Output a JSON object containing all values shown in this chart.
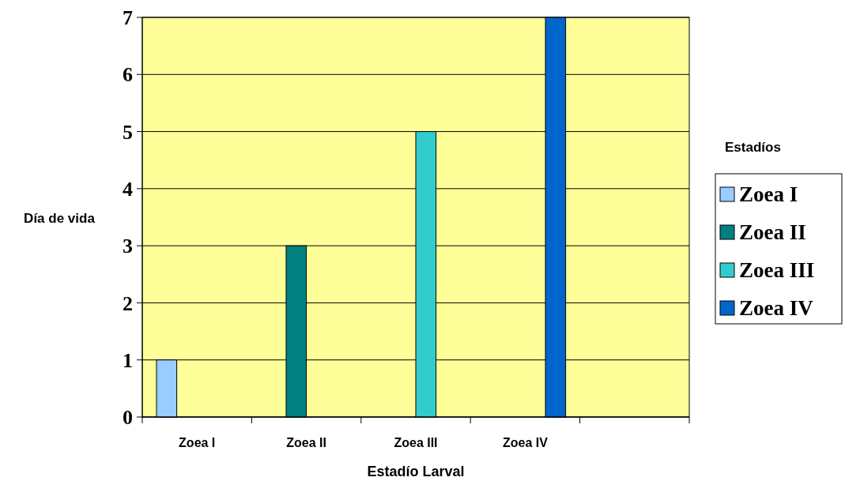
{
  "chart_data": {
    "type": "bar",
    "xlabel": "Estadío Larval",
    "ylabel": "Día de vida",
    "legend_title": "Estadíos",
    "categories": [
      "Zoea I",
      "Zoea II",
      "Zoea III",
      "Zoea IV",
      null
    ],
    "series": [
      {
        "name": "Zoea I",
        "color": "#99ccff",
        "values": [
          1,
          null,
          null,
          null,
          null
        ]
      },
      {
        "name": "Zoea II",
        "color": "#008080",
        "values": [
          null,
          3,
          null,
          null,
          null
        ]
      },
      {
        "name": "Zoea III",
        "color": "#33cccc",
        "values": [
          null,
          null,
          5,
          null,
          null
        ]
      },
      {
        "name": "Zoea IV",
        "color": "#0066cc",
        "values": [
          null,
          null,
          null,
          7,
          null
        ]
      }
    ],
    "ylim": [
      0,
      7
    ],
    "yticks": [
      0,
      1,
      2,
      3,
      4,
      5,
      6,
      7
    ],
    "grid": "y",
    "legend": "right"
  }
}
